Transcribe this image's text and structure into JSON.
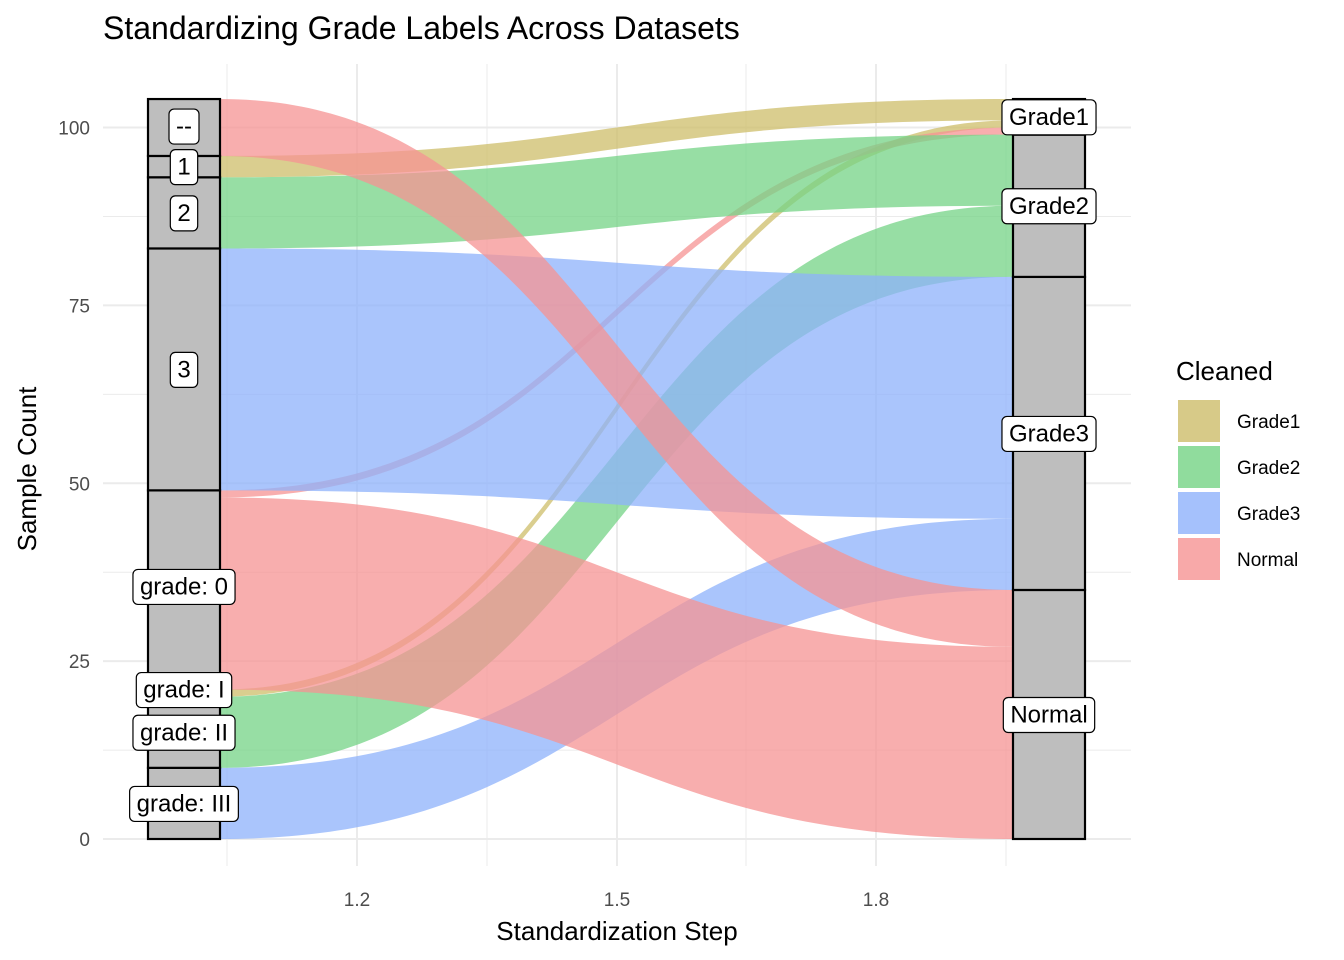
{
  "chart_data": {
    "type": "alluvial",
    "title": "Standardizing Grade Labels Across Datasets",
    "xlabel": "Standardization Step",
    "ylabel": "Sample Count",
    "x_ticks": [
      "1.2",
      "1.5",
      "1.8"
    ],
    "y_ticks": [
      "0",
      "25",
      "50",
      "75",
      "100"
    ],
    "ylim": [
      0,
      104
    ],
    "legend": {
      "title": "Cleaned",
      "position": "right"
    },
    "series": [
      {
        "name": "Grade1",
        "color": "#CDBD6A"
      },
      {
        "name": "Grade2",
        "color": "#74D385"
      },
      {
        "name": "Grade3",
        "color": "#8EB1FB"
      },
      {
        "name": "Normal",
        "color": "#F69393"
      }
    ],
    "axis1": {
      "strata": [
        {
          "label": "grade: III",
          "count": 10
        },
        {
          "label": "grade: II",
          "count": 10
        },
        {
          "label": "grade: I",
          "count": 1
        },
        {
          "label": "grade: 0",
          "count": 28
        },
        {
          "label": "3",
          "count": 34
        },
        {
          "label": "2",
          "count": 10
        },
        {
          "label": "1",
          "count": 3
        },
        {
          "label": "--",
          "count": 8
        }
      ]
    },
    "axis2": {
      "strata": [
        {
          "label": "Normal",
          "count": 35
        },
        {
          "label": "Grade3",
          "count": 44
        },
        {
          "label": "Grade2",
          "count": 20
        },
        {
          "label": "Grade1",
          "count": 5
        }
      ]
    },
    "flows": [
      {
        "from": "grade: III",
        "to": "Grade3",
        "count": 10,
        "class": "Grade3"
      },
      {
        "from": "grade: II",
        "to": "Grade2",
        "count": 10,
        "class": "Grade2"
      },
      {
        "from": "grade: I",
        "to": "Grade1",
        "count": 1,
        "class": "Grade1"
      },
      {
        "from": "grade: 0",
        "to": "Normal",
        "count": 27,
        "class": "Normal"
      },
      {
        "from": "grade: 0",
        "to": "Grade1",
        "count": 1,
        "class": "Normal"
      },
      {
        "from": "3",
        "to": "Grade3",
        "count": 34,
        "class": "Grade3"
      },
      {
        "from": "2",
        "to": "Grade2",
        "count": 10,
        "class": "Grade2"
      },
      {
        "from": "1",
        "to": "Grade1",
        "count": 3,
        "class": "Grade1"
      },
      {
        "from": "--",
        "to": "Normal",
        "count": 8,
        "class": "Normal"
      }
    ]
  }
}
